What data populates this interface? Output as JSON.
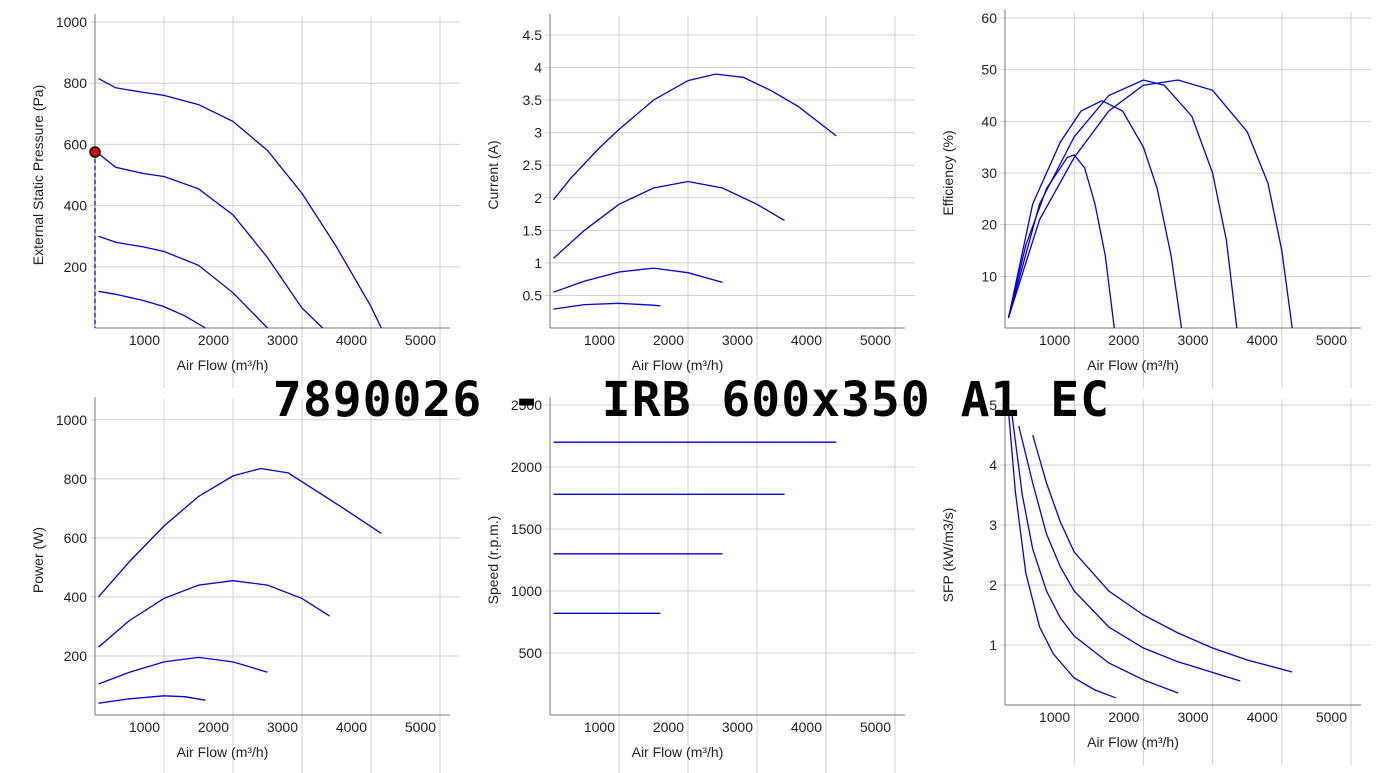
{
  "title": "7890026 -  IRB 600x350 A1 EC",
  "series_color": "#0000dd",
  "marker_color": "#dd0000",
  "chart_data": [
    {
      "id": "pressure",
      "type": "line",
      "xlabel": "Air Flow (m³/h)",
      "ylabel": "External Static Pressure (Pa)",
      "xlim": [
        0,
        5000
      ],
      "ylim": [
        0,
        1000
      ],
      "xticks": [
        1000,
        2000,
        3000,
        4000,
        5000
      ],
      "yticks": [
        200,
        400,
        600,
        800,
        1000
      ],
      "grid": true,
      "series": [
        {
          "x": [
            50,
            300,
            700,
            1000,
            1500,
            2000,
            2500,
            3000,
            3500,
            4000,
            4150
          ],
          "y": [
            815,
            785,
            770,
            760,
            730,
            675,
            580,
            440,
            265,
            70,
            0
          ]
        },
        {
          "x": [
            50,
            300,
            700,
            1000,
            1500,
            2000,
            2500,
            3000,
            3300
          ],
          "y": [
            570,
            525,
            505,
            495,
            455,
            370,
            230,
            65,
            0
          ]
        },
        {
          "x": [
            50,
            300,
            700,
            1000,
            1500,
            2000,
            2500
          ],
          "y": [
            300,
            280,
            265,
            250,
            205,
            115,
            0
          ]
        },
        {
          "x": [
            50,
            300,
            700,
            1000,
            1300,
            1600
          ],
          "y": [
            120,
            110,
            90,
            70,
            40,
            0
          ]
        }
      ],
      "marker": {
        "x": 0,
        "y": 575
      }
    },
    {
      "id": "current",
      "type": "line",
      "xlabel": "Air Flow (m³/h)",
      "ylabel": "Current (A)",
      "xlim": [
        0,
        5000
      ],
      "ylim": [
        0,
        4.7
      ],
      "xticks": [
        1000,
        2000,
        3000,
        4000,
        5000
      ],
      "yticks": [
        0.5,
        1,
        1.5,
        2,
        2.5,
        3,
        3.5,
        4,
        4.5
      ],
      "grid": true,
      "series": [
        {
          "x": [
            50,
            300,
            700,
            1000,
            1500,
            2000,
            2400,
            2800,
            3200,
            3600,
            4150
          ],
          "y": [
            1.97,
            2.3,
            2.75,
            3.05,
            3.5,
            3.8,
            3.9,
            3.85,
            3.65,
            3.4,
            2.95
          ]
        },
        {
          "x": [
            50,
            500,
            1000,
            1500,
            2000,
            2500,
            3000,
            3400
          ],
          "y": [
            1.07,
            1.5,
            1.9,
            2.15,
            2.25,
            2.15,
            1.9,
            1.65
          ]
        },
        {
          "x": [
            50,
            500,
            1000,
            1500,
            2000,
            2500
          ],
          "y": [
            0.55,
            0.72,
            0.86,
            0.92,
            0.85,
            0.7
          ]
        },
        {
          "x": [
            50,
            500,
            1000,
            1500,
            1600
          ],
          "y": [
            0.29,
            0.36,
            0.38,
            0.35,
            0.34
          ]
        }
      ]
    },
    {
      "id": "efficiency",
      "type": "line",
      "xlabel": "Air Flow (m³/h)",
      "ylabel": "Efficiency (%)",
      "xlim": [
        0,
        5000
      ],
      "ylim": [
        0,
        60
      ],
      "xticks": [
        1000,
        2000,
        3000,
        4000,
        5000
      ],
      "yticks": [
        10,
        20,
        30,
        40,
        50,
        60
      ],
      "grid": true,
      "series": [
        {
          "x": [
            50,
            500,
            1000,
            1500,
            2000,
            2500,
            3000,
            3500,
            3800,
            4000,
            4150
          ],
          "y": [
            2,
            21,
            33,
            42,
            47,
            48,
            46,
            38,
            28,
            15,
            0
          ]
        },
        {
          "x": [
            50,
            500,
            1000,
            1500,
            2000,
            2300,
            2700,
            3000,
            3200,
            3350
          ],
          "y": [
            2,
            24,
            37,
            45,
            48,
            47,
            41,
            30,
            17,
            0
          ]
        },
        {
          "x": [
            50,
            400,
            800,
            1100,
            1400,
            1700,
            2000,
            2200,
            2400,
            2550
          ],
          "y": [
            2,
            24,
            36,
            42,
            44,
            42,
            35,
            27,
            14,
            0
          ]
        },
        {
          "x": [
            50,
            300,
            600,
            900,
            1000,
            1150,
            1300,
            1450,
            1580
          ],
          "y": [
            2,
            16,
            27,
            33,
            33.5,
            31,
            24,
            14,
            0
          ]
        }
      ]
    },
    {
      "id": "power",
      "type": "line",
      "xlabel": "Air Flow (m³/h)",
      "ylabel": "Power (W)",
      "xlim": [
        0,
        5000
      ],
      "ylim": [
        0,
        1050
      ],
      "xticks": [
        1000,
        2000,
        3000,
        4000,
        5000
      ],
      "yticks": [
        200,
        400,
        600,
        800,
        1000
      ],
      "grid": true,
      "series": [
        {
          "x": [
            50,
            500,
            1000,
            1500,
            2000,
            2400,
            2800,
            3200,
            3600,
            4150
          ],
          "y": [
            400,
            520,
            640,
            740,
            810,
            835,
            820,
            760,
            700,
            615
          ]
        },
        {
          "x": [
            50,
            500,
            1000,
            1500,
            2000,
            2500,
            3000,
            3400
          ],
          "y": [
            230,
            320,
            395,
            440,
            455,
            440,
            395,
            335
          ]
        },
        {
          "x": [
            50,
            500,
            1000,
            1500,
            2000,
            2500
          ],
          "y": [
            105,
            145,
            180,
            195,
            180,
            145
          ]
        },
        {
          "x": [
            50,
            500,
            1000,
            1300,
            1600
          ],
          "y": [
            40,
            55,
            65,
            62,
            50
          ]
        }
      ]
    },
    {
      "id": "speed",
      "type": "line",
      "xlabel": "Air Flow (m³/h)",
      "ylabel": "Speed (r.p.m.)",
      "xlim": [
        0,
        5000
      ],
      "ylim": [
        0,
        2500
      ],
      "xticks": [
        1000,
        2000,
        3000,
        4000,
        5000
      ],
      "yticks": [
        500,
        1000,
        1500,
        2000,
        2500
      ],
      "grid": true,
      "series": [
        {
          "x": [
            50,
            4150
          ],
          "y": [
            2200,
            2200
          ]
        },
        {
          "x": [
            50,
            3400
          ],
          "y": [
            1780,
            1780
          ]
        },
        {
          "x": [
            50,
            2500
          ],
          "y": [
            1300,
            1300
          ]
        },
        {
          "x": [
            50,
            1600
          ],
          "y": [
            820,
            820
          ]
        }
      ]
    },
    {
      "id": "sfp",
      "type": "line",
      "xlabel": "Air Flow (m³/h)",
      "ylabel": "SFP (kW/m3/s)",
      "xlim": [
        0,
        5000
      ],
      "ylim": [
        0,
        5
      ],
      "xticks": [
        1000,
        2000,
        3000,
        4000,
        5000
      ],
      "yticks": [
        1,
        2,
        3,
        4,
        5
      ],
      "grid": true,
      "series": [
        {
          "x": [
            400,
            600,
            800,
            1000,
            1500,
            2000,
            2500,
            3000,
            3500,
            4150
          ],
          "y": [
            4.5,
            3.7,
            3.05,
            2.55,
            1.9,
            1.5,
            1.2,
            0.95,
            0.75,
            0.55
          ]
        },
        {
          "x": [
            200,
            400,
            600,
            800,
            1000,
            1500,
            2000,
            2500,
            3400
          ],
          "y": [
            4.65,
            3.7,
            2.85,
            2.3,
            1.9,
            1.3,
            0.95,
            0.72,
            0.4
          ]
        },
        {
          "x": [
            100,
            250,
            400,
            600,
            800,
            1000,
            1500,
            2000,
            2500
          ],
          "y": [
            4.85,
            3.5,
            2.6,
            1.9,
            1.45,
            1.15,
            0.7,
            0.42,
            0.2
          ]
        },
        {
          "x": [
            50,
            150,
            300,
            500,
            700,
            1000,
            1300,
            1600
          ],
          "y": [
            4.9,
            3.55,
            2.2,
            1.3,
            0.85,
            0.45,
            0.25,
            0.12
          ]
        }
      ]
    }
  ]
}
